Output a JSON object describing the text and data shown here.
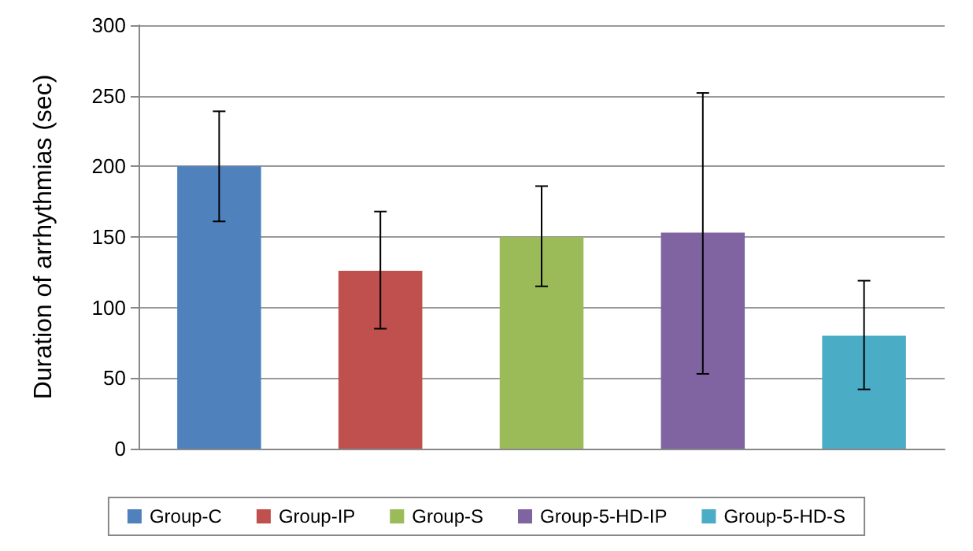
{
  "chart_data": {
    "type": "bar",
    "ylabel": "Duration of arrhythmias (sec)",
    "categories": [
      null,
      null,
      null,
      null,
      null
    ],
    "series": [
      {
        "name": "Group-C",
        "color": "#4f81bd",
        "values": [
          200,
          null,
          null,
          null,
          null
        ],
        "errors": [
          [
            161,
            239
          ],
          null,
          null,
          null,
          null
        ]
      },
      {
        "name": "Group-IP",
        "color": "#c0504d",
        "values": [
          null,
          126,
          null,
          null,
          null
        ],
        "errors": [
          null,
          [
            85,
            168
          ],
          null,
          null,
          null
        ]
      },
      {
        "name": "Group-S",
        "color": "#9bbb59",
        "values": [
          null,
          null,
          150,
          null,
          null
        ],
        "errors": [
          null,
          null,
          [
            115,
            186
          ],
          null,
          null
        ]
      },
      {
        "name": "Group-5-HD-IP",
        "color": "#8064a2",
        "values": [
          null,
          null,
          null,
          153,
          null
        ],
        "errors": [
          null,
          null,
          null,
          [
            53,
            252
          ],
          null
        ]
      },
      {
        "name": "Group-5-HD-S",
        "color": "#4bacc6",
        "values": [
          null,
          null,
          null,
          null,
          80
        ],
        "errors": [
          null,
          null,
          null,
          null,
          [
            42,
            119
          ]
        ]
      }
    ],
    "ylim": [
      0,
      300
    ],
    "yticks": [
      0,
      50,
      100,
      150,
      200,
      250,
      300
    ],
    "grid": "y",
    "legend": "bottom"
  }
}
